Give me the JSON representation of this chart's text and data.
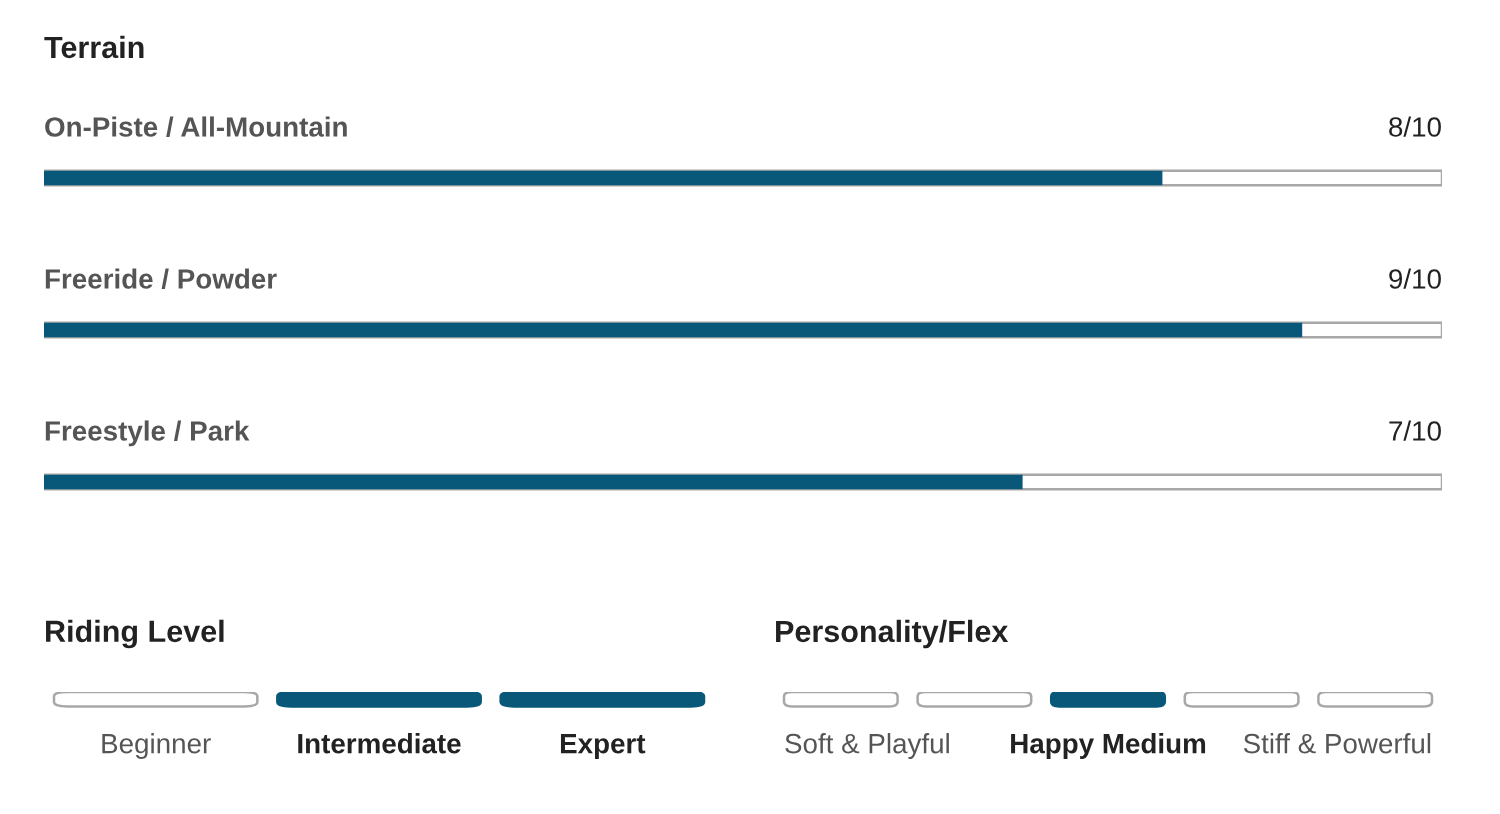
{
  "chart_data": [
    {
      "type": "bar",
      "orientation": "horizontal",
      "title": "Terrain",
      "categories": [
        "On-Piste / All-Mountain",
        "Freeride / Powder",
        "Freestyle / Park"
      ],
      "values": [
        0.8,
        0.9,
        0.7
      ],
      "value_labels": [
        "8/10",
        "9/10",
        "7/10"
      ],
      "xlim": [
        0,
        1
      ],
      "color": "#0a5879",
      "tick_labels": false
    },
    {
      "type": "other",
      "title": "Riding Level",
      "categories": [
        "Beginner",
        "Intermediate",
        "Expert"
      ],
      "colors": [
        "#ffffff",
        "#0a5879",
        "#0a5879"
      ]
    },
    {
      "type": "other",
      "title": "Personality/Flex",
      "categories": [
        "Soft & Playful",
        null,
        "Happy Medium",
        null,
        "Stiff & Powerful"
      ],
      "colors": [
        "#ffffff",
        "#ffffff",
        "#0a5879",
        "#ffffff",
        "#ffffff"
      ]
    }
  ]
}
